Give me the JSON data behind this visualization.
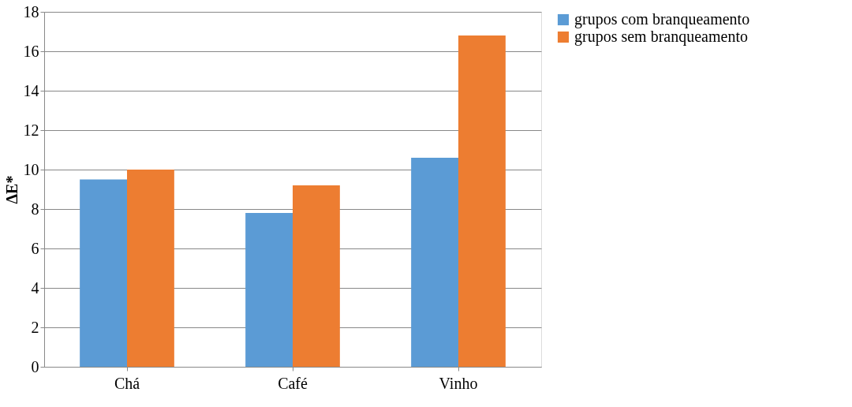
{
  "chart_data": {
    "type": "bar",
    "ylabel": "ΔE*",
    "categories": [
      "Chá",
      "Café",
      "Vinho"
    ],
    "series": [
      {
        "name": "grupos com branqueamento",
        "color": "#5b9bd5",
        "values": [
          9.5,
          7.8,
          10.6
        ]
      },
      {
        "name": "grupos sem branqueamento",
        "color": "#ed7d31",
        "values": [
          10,
          9.2,
          16.8
        ]
      }
    ],
    "ylim": [
      0,
      18
    ],
    "yticks": [
      0,
      2,
      4,
      6,
      8,
      10,
      12,
      14,
      16,
      18
    ],
    "grid": "y",
    "legend": "right"
  }
}
